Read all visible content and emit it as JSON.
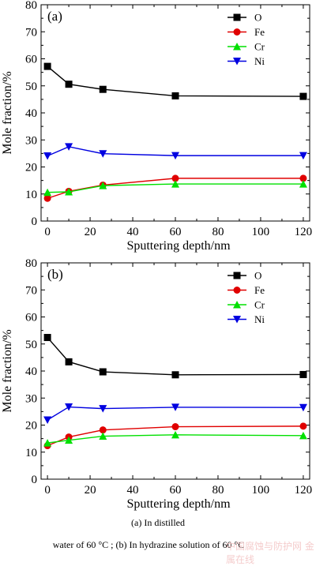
{
  "chart_data": [
    {
      "type": "line",
      "panel_label": "(a)",
      "xlabel": "Sputtering depth/nm",
      "ylabel": "Mole fraction/%",
      "xlim": [
        -3,
        123
      ],
      "ylim": [
        0,
        80
      ],
      "xticks": [
        0,
        20,
        40,
        60,
        80,
        100,
        120
      ],
      "yticks": [
        0,
        10,
        20,
        30,
        40,
        50,
        60,
        70,
        80
      ],
      "grid": false,
      "legend": "top-right",
      "x": [
        0,
        10,
        26,
        60,
        120
      ],
      "series": [
        {
          "name": "O",
          "color": "#000000",
          "marker": "square",
          "values": [
            57.2,
            50.6,
            48.7,
            46.3,
            46.1
          ]
        },
        {
          "name": "Fe",
          "color": "#e00000",
          "marker": "circle",
          "values": [
            8.4,
            11.0,
            13.3,
            15.8,
            15.8
          ]
        },
        {
          "name": "Cr",
          "color": "#00e000",
          "marker": "triangle-up",
          "values": [
            10.6,
            10.8,
            13.1,
            13.7,
            13.7
          ]
        },
        {
          "name": "Ni",
          "color": "#0000e0",
          "marker": "triangle-down",
          "values": [
            24.1,
            27.5,
            24.9,
            24.2,
            24.2
          ]
        }
      ]
    },
    {
      "type": "line",
      "panel_label": "(b)",
      "xlabel": "Sputtering depth/nm",
      "ylabel": "Mole fraction/%",
      "xlim": [
        -3,
        123
      ],
      "ylim": [
        0,
        80
      ],
      "xticks": [
        0,
        20,
        40,
        60,
        80,
        100,
        120
      ],
      "yticks": [
        0,
        10,
        20,
        30,
        40,
        50,
        60,
        70,
        80
      ],
      "grid": false,
      "legend": "top-right",
      "x": [
        0,
        10,
        26,
        60,
        120
      ],
      "series": [
        {
          "name": "O",
          "color": "#000000",
          "marker": "square",
          "values": [
            52.4,
            43.4,
            39.7,
            38.6,
            38.7
          ]
        },
        {
          "name": "Fe",
          "color": "#e00000",
          "marker": "circle",
          "values": [
            12.4,
            15.6,
            18.2,
            19.4,
            19.6
          ]
        },
        {
          "name": "Cr",
          "color": "#00e000",
          "marker": "triangle-up",
          "values": [
            13.4,
            14.4,
            15.9,
            16.4,
            16.1
          ]
        },
        {
          "name": "Ni",
          "color": "#0000e0",
          "marker": "triangle-down",
          "values": [
            21.9,
            26.7,
            26.1,
            26.6,
            26.5
          ]
        }
      ]
    }
  ],
  "caption": {
    "line1": "(a)  In  distilled",
    "line2": "water of 60 °C ; (b) In hydrazine solution of 60 °C"
  },
  "watermark": "中国腐蚀与防护网 金属在线"
}
